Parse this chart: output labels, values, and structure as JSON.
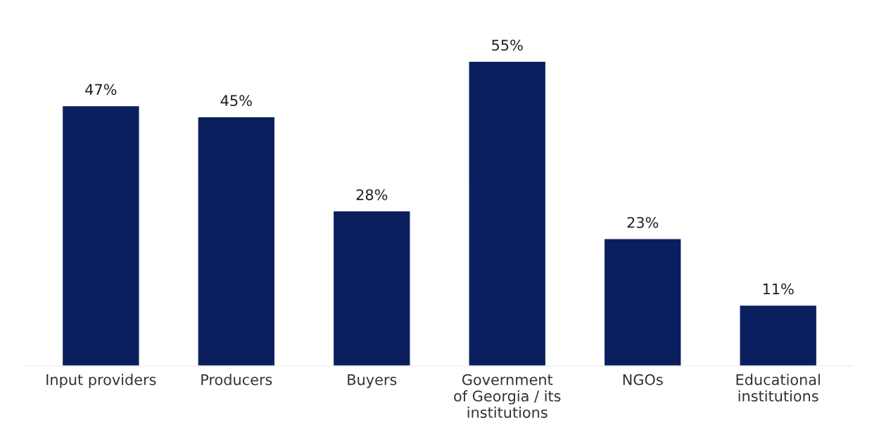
{
  "chart_data": {
    "type": "bar",
    "categories": [
      "Input providers",
      "Producers",
      "Buyers",
      "Government\nof Georgia / its\ninstitutions",
      "NGOs",
      "Educational\ninstitutions"
    ],
    "values": [
      47,
      45,
      28,
      55,
      23,
      11
    ],
    "value_labels": [
      "47%",
      "45%",
      "28%",
      "55%",
      "23%",
      "11%"
    ],
    "color": "#0b1f5e",
    "grid": false,
    "legend": false
  }
}
